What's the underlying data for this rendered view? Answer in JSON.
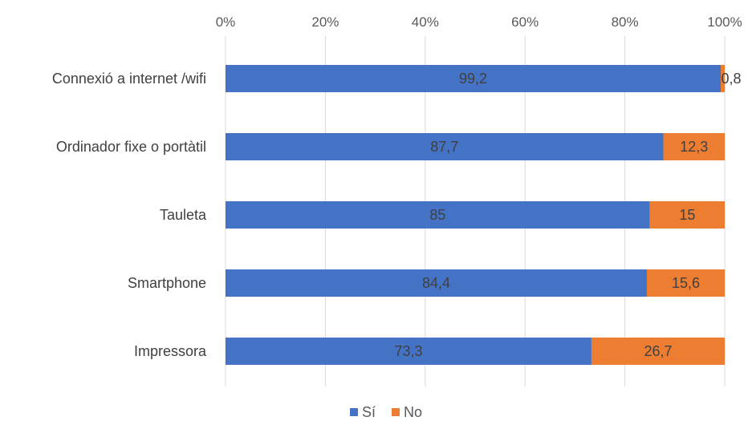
{
  "chart_data": {
    "type": "bar",
    "orientation": "horizontal",
    "stacked": true,
    "categories": [
      "Connexió a internet /wifi",
      "Ordinador fixe o portàtil",
      "Tauleta",
      "Smartphone",
      "Impressora"
    ],
    "series": [
      {
        "name": "Sí",
        "color": "#4472C4",
        "values": [
          99.2,
          87.7,
          85,
          84.4,
          73.3
        ],
        "labels": [
          "99,2",
          "87,7",
          "85",
          "84,4",
          "73,3"
        ]
      },
      {
        "name": "No",
        "color": "#ED7D31",
        "values": [
          0.8,
          12.3,
          15,
          15.6,
          26.7
        ],
        "labels": [
          "0,8",
          "12,3",
          "15",
          "15,6",
          "26,7"
        ]
      }
    ],
    "xaxis": {
      "position": "top",
      "ticks": [
        0,
        20,
        40,
        60,
        80,
        100
      ],
      "tick_labels": [
        "0%",
        "20%",
        "40%",
        "60%",
        "80%",
        "100%"
      ],
      "xlim": [
        0,
        100
      ]
    },
    "grid": true,
    "legend": "bottom"
  }
}
